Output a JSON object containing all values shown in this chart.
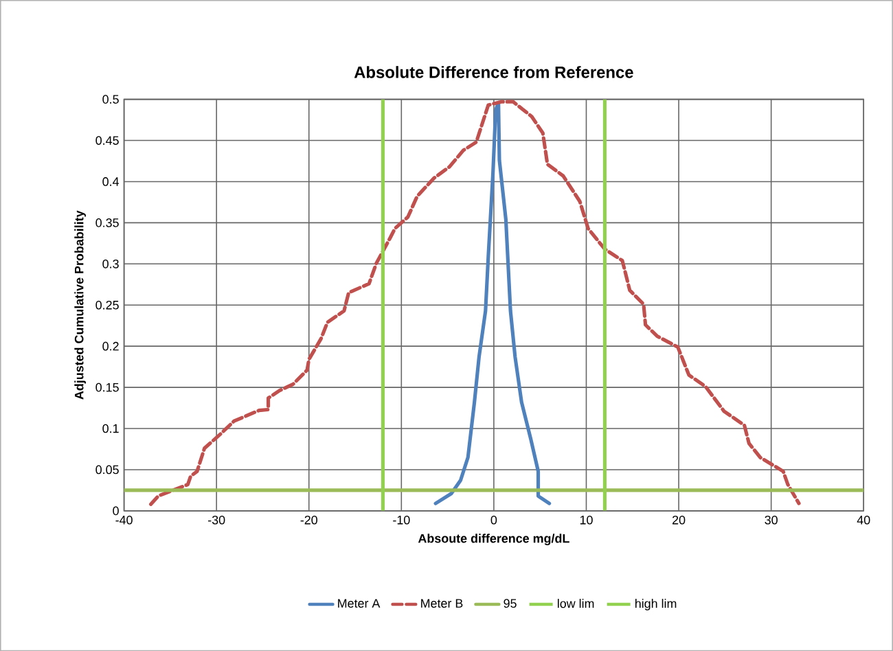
{
  "chart_data": {
    "type": "line",
    "title": "Absolute Difference from Reference",
    "xlabel": "Absoute difference mg/dL",
    "ylabel": "Adjusted Cumulative Probability",
    "xlim": [
      -40,
      40
    ],
    "xticks": [
      -40,
      -30,
      -20,
      -10,
      0,
      10,
      20,
      30,
      40
    ],
    "ylim": [
      0,
      0.5
    ],
    "yticks": [
      0,
      0.05,
      0.1,
      0.15,
      0.2,
      0.25,
      0.3,
      0.35,
      0.4,
      0.45,
      0.5
    ],
    "grid": true,
    "legend": "bottom",
    "marker": "none",
    "series": [
      {
        "name": "Meter A",
        "color": "#4f81bd",
        "line_style": "solid",
        "x": [
          -6.3,
          -4.6,
          -3.6,
          -2.8,
          -2.1,
          -1.6,
          -0.9,
          -0.6,
          -0.1,
          0.2,
          0.5,
          0.6,
          1.3,
          1.8,
          2.3,
          3.0,
          4.0,
          4.8,
          4.8,
          6.0
        ],
        "values": [
          0.009,
          0.021,
          0.037,
          0.065,
          0.132,
          0.187,
          0.243,
          0.309,
          0.409,
          0.487,
          0.496,
          0.426,
          0.354,
          0.243,
          0.187,
          0.132,
          0.087,
          0.048,
          0.018,
          0.009
        ]
      },
      {
        "name": "Meter B",
        "color": "#c0504d",
        "line_style": "dashed",
        "x": [
          -37.1,
          -36.3,
          -33.1,
          -32.8,
          -32.1,
          -31.3,
          -29.6,
          -28.1,
          -25.4,
          -24.4,
          -24.4,
          -23.2,
          -21.7,
          -20.2,
          -20.0,
          -18.7,
          -18.0,
          -16.2,
          -15.7,
          -13.5,
          -12.7,
          -11.2,
          -10.7,
          -9.3,
          -8.3,
          -6.5,
          -4.8,
          -3.3,
          -1.9,
          -0.6,
          0.8,
          2.1,
          4.1,
          5.3,
          5.8,
          7.5,
          9.3,
          10.2,
          12.0,
          13.9,
          14.7,
          16.2,
          16.4,
          17.7,
          19.9,
          21.1,
          22.9,
          24.9,
          27.1,
          27.6,
          28.8,
          31.3,
          31.8,
          33.0
        ],
        "values": [
          0.008,
          0.018,
          0.032,
          0.042,
          0.048,
          0.076,
          0.093,
          0.109,
          0.122,
          0.123,
          0.137,
          0.146,
          0.154,
          0.171,
          0.184,
          0.209,
          0.229,
          0.243,
          0.265,
          0.276,
          0.301,
          0.332,
          0.343,
          0.357,
          0.382,
          0.404,
          0.418,
          0.438,
          0.448,
          0.493,
          0.497,
          0.497,
          0.479,
          0.459,
          0.421,
          0.407,
          0.376,
          0.343,
          0.318,
          0.304,
          0.268,
          0.251,
          0.226,
          0.212,
          0.199,
          0.165,
          0.151,
          0.121,
          0.104,
          0.082,
          0.065,
          0.048,
          0.032,
          0.009
        ]
      },
      {
        "name": "95",
        "color": "#9bbb59",
        "line_style": "solid",
        "x": [
          -40,
          40
        ],
        "values": [
          0.025,
          0.025
        ]
      }
    ],
    "ref_lines": [
      {
        "axis": "x",
        "value": -12,
        "label": "low lim",
        "color": "#92d050"
      },
      {
        "axis": "x",
        "value": 12,
        "label": "high lim",
        "color": "#92d050"
      }
    ]
  }
}
